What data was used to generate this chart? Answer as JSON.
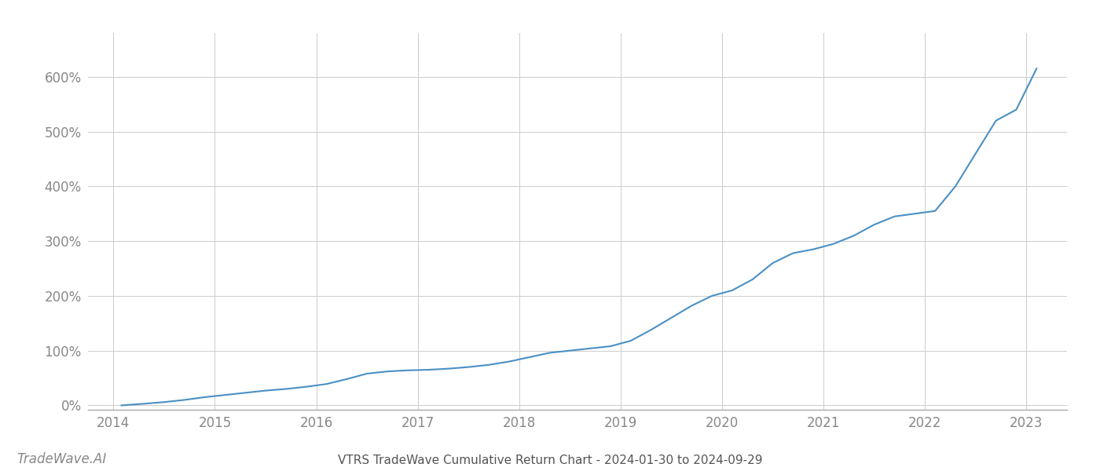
{
  "title": "VTRS TradeWave Cumulative Return Chart - 2024-01-30 to 2024-09-29",
  "watermark": "TradeWave.AI",
  "line_color": "#4a90c4",
  "line_width": 1.5,
  "background_color": "#ffffff",
  "grid_color": "#cccccc",
  "xlim": [
    2013.75,
    2023.4
  ],
  "ylim": [
    -0.08,
    6.8
  ],
  "yticks": [
    0.0,
    1.0,
    2.0,
    3.0,
    4.0,
    5.0,
    6.0
  ],
  "ytick_labels": [
    "0%",
    "100%",
    "200%",
    "300%",
    "400%",
    "500%",
    "600%"
  ],
  "xticks": [
    2014,
    2015,
    2016,
    2017,
    2018,
    2019,
    2020,
    2021,
    2022,
    2023
  ],
  "x_data": [
    2014.08,
    2014.15,
    2014.3,
    2014.5,
    2014.7,
    2014.9,
    2015.1,
    2015.3,
    2015.5,
    2015.7,
    2015.9,
    2016.1,
    2016.3,
    2016.5,
    2016.7,
    2016.9,
    2017.1,
    2017.3,
    2017.5,
    2017.7,
    2017.9,
    2018.1,
    2018.3,
    2018.5,
    2018.7,
    2018.9,
    2019.1,
    2019.3,
    2019.5,
    2019.7,
    2019.9,
    2020.1,
    2020.3,
    2020.5,
    2020.7,
    2020.9,
    2021.1,
    2021.3,
    2021.5,
    2021.7,
    2021.9,
    2022.1,
    2022.3,
    2022.5,
    2022.7,
    2022.9,
    2023.1
  ],
  "y_data": [
    0.0,
    0.01,
    0.03,
    0.06,
    0.1,
    0.15,
    0.19,
    0.23,
    0.27,
    0.3,
    0.34,
    0.39,
    0.48,
    0.58,
    0.62,
    0.64,
    0.65,
    0.67,
    0.7,
    0.74,
    0.8,
    0.88,
    0.96,
    1.0,
    1.04,
    1.08,
    1.18,
    1.38,
    1.6,
    1.82,
    2.0,
    2.1,
    2.3,
    2.6,
    2.78,
    2.85,
    2.95,
    3.1,
    3.3,
    3.45,
    3.5,
    3.55,
    4.0,
    4.6,
    5.2,
    5.4,
    6.15
  ],
  "title_fontsize": 11,
  "tick_fontsize": 12,
  "watermark_fontsize": 12,
  "tick_color": "#888888",
  "title_color": "#555555",
  "watermark_color": "#888888"
}
